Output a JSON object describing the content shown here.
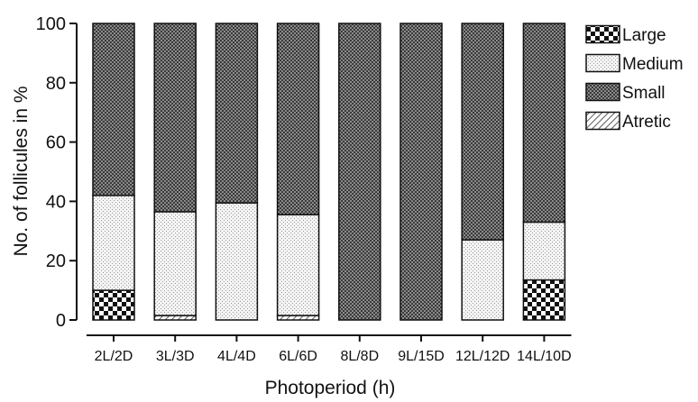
{
  "chart_data": {
    "type": "bar",
    "stacked": true,
    "xlabel": "Photoperiod (h)",
    "ylabel": "No. of follicules in %",
    "ylim": [
      0,
      100
    ],
    "yticks": [
      0,
      20,
      40,
      60,
      80,
      100
    ],
    "grid": false,
    "legend_position": "right",
    "categories": [
      "2L/2D",
      "3L/3D",
      "4L/4D",
      "6L/6D",
      "8L/8D",
      "9L/15D",
      "12L/12D",
      "14L/10D"
    ],
    "series": [
      {
        "name": "Large",
        "pattern": "checker-large",
        "values": [
          10,
          0,
          0,
          0,
          0,
          0,
          0,
          13.5
        ]
      },
      {
        "name": "Medium",
        "pattern": "dots-light",
        "values": [
          32,
          35,
          39.5,
          34,
          0,
          0,
          27,
          19.5
        ]
      },
      {
        "name": "Small",
        "pattern": "checker-fine",
        "values": [
          58,
          63.5,
          60.5,
          64.5,
          100,
          100,
          73,
          67
        ]
      },
      {
        "name": "Atretic",
        "pattern": "diagonal-hatch",
        "values": [
          0,
          1.5,
          0,
          1.5,
          0,
          0,
          0,
          0
        ]
      }
    ],
    "colors": {
      "bar_outline": "#111111",
      "axis": "#111111",
      "small_fill": "#555555",
      "medium_fill": "#ededed"
    }
  }
}
